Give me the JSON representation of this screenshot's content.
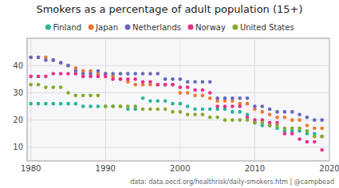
{
  "chart_data": {
    "type": "scatter",
    "title": "Smokers as a percentage of adult population (15+)",
    "subtitle": "data: data.oecd.org/healthrisk/daily-smokers.htm | @campbead",
    "x": [
      1980,
      1981,
      1982,
      1983,
      1984,
      1985,
      1986,
      1987,
      1988,
      1989,
      1990,
      1991,
      1992,
      1993,
      1994,
      1995,
      1996,
      1997,
      1998,
      1999,
      2000,
      2001,
      2002,
      2003,
      2004,
      2005,
      2006,
      2007,
      2008,
      2009,
      2010,
      2011,
      2012,
      2013,
      2014,
      2015,
      2016,
      2017,
      2018,
      2019
    ],
    "series": [
      {
        "name": "Finland",
        "color": "#26b899",
        "values": [
          26,
          26,
          26,
          26,
          26,
          26,
          26,
          25,
          25,
          25,
          25,
          25,
          25,
          24,
          24,
          28,
          27,
          27,
          27,
          26,
          26,
          25,
          24,
          24,
          24,
          24,
          24,
          23,
          23,
          22,
          19,
          18,
          18,
          17,
          16,
          16,
          16,
          15,
          15,
          14
        ]
      },
      {
        "name": "Japan",
        "color": "#f07830",
        "values": [
          43,
          43,
          43,
          42,
          41,
          40,
          39,
          38,
          38,
          37,
          37,
          36,
          35,
          34,
          33,
          33,
          33,
          33,
          33,
          33,
          30,
          30,
          29,
          29,
          28,
          27,
          27,
          27,
          26,
          26,
          24,
          23,
          22,
          21,
          21,
          20,
          20,
          18,
          17,
          17
        ]
      },
      {
        "name": "Netherlands",
        "color": "#6868c0",
        "values": [
          43,
          43,
          42,
          42,
          41,
          40,
          38,
          37,
          37,
          38,
          37,
          37,
          37,
          37,
          37,
          37,
          37,
          37,
          35,
          35,
          35,
          34,
          34,
          34,
          34,
          28,
          28,
          28,
          28,
          28,
          25,
          25,
          24,
          23,
          23,
          23,
          22,
          21,
          20,
          20
        ]
      },
      {
        "name": "Norway",
        "color": "#e8308a",
        "values": [
          36,
          36,
          36,
          37,
          37,
          37,
          37,
          36,
          36,
          36,
          36,
          35,
          35,
          35,
          35,
          34,
          34,
          33,
          33,
          33,
          32,
          32,
          31,
          31,
          30,
          25,
          25,
          25,
          25,
          21,
          20,
          20,
          19,
          19,
          15,
          15,
          13,
          12,
          12,
          9
        ]
      },
      {
        "name": "United States",
        "color": "#8aaa28",
        "values": [
          33,
          33,
          32,
          32,
          32,
          30,
          29,
          29,
          29,
          29,
          25,
          25,
          25,
          25,
          25,
          24,
          24,
          24,
          24,
          23,
          23,
          22,
          22,
          22,
          21,
          21,
          20,
          20,
          20,
          20,
          19,
          19,
          18,
          18,
          17,
          17,
          17,
          16,
          14,
          14
        ]
      }
    ],
    "xlim": [
      1979.5,
      2020
    ],
    "ylim": [
      5,
      50
    ],
    "xticks": [
      1980,
      1990,
      2000,
      2010,
      2020
    ],
    "yticks": [
      10,
      20,
      30,
      40
    ],
    "grid": true,
    "legend": "top"
  }
}
